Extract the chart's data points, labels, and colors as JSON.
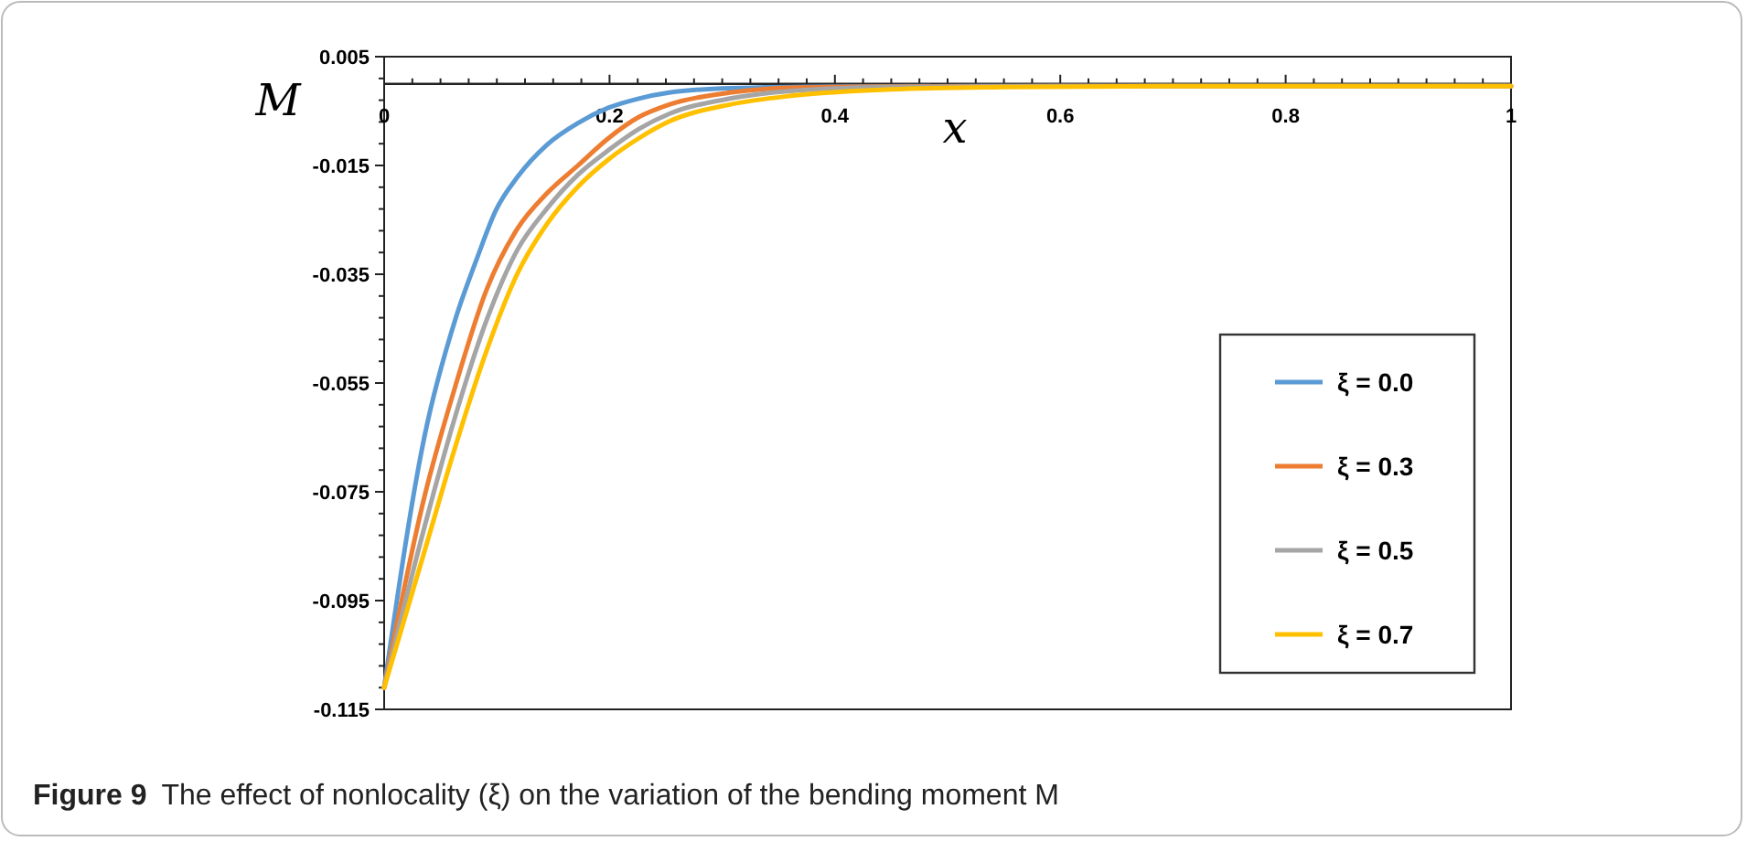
{
  "chart_data": {
    "type": "line",
    "xlabel": "x",
    "ylabel": "M",
    "xlim": [
      0,
      1
    ],
    "ylim": [
      -0.115,
      0.005
    ],
    "xticks": [
      0,
      {
        "value": 0.025,
        "label": null
      },
      {
        "value": 0.05,
        "label": null
      },
      {
        "value": 0.075,
        "label": null
      },
      {
        "value": 0.1,
        "label": null
      },
      {
        "value": 0.125,
        "label": null
      },
      {
        "value": 0.15,
        "label": null
      },
      {
        "value": 0.175,
        "label": null
      },
      0.2,
      {
        "value": 0.225,
        "label": null
      },
      {
        "value": 0.25,
        "label": null
      },
      {
        "value": 0.275,
        "label": null
      },
      {
        "value": 0.3,
        "label": null
      },
      {
        "value": 0.325,
        "label": null
      },
      {
        "value": 0.35,
        "label": null
      },
      {
        "value": 0.375,
        "label": null
      },
      0.4,
      {
        "value": 0.425,
        "label": null
      },
      {
        "value": 0.45,
        "label": null
      },
      {
        "value": 0.475,
        "label": null
      },
      {
        "value": 0.5,
        "label": null
      },
      {
        "value": 0.525,
        "label": null
      },
      {
        "value": 0.55,
        "label": null
      },
      {
        "value": 0.575,
        "label": null
      },
      0.6,
      {
        "value": 0.625,
        "label": null
      },
      {
        "value": 0.65,
        "label": null
      },
      {
        "value": 0.675,
        "label": null
      },
      {
        "value": 0.7,
        "label": null
      },
      {
        "value": 0.725,
        "label": null
      },
      {
        "value": 0.75,
        "label": null
      },
      {
        "value": 0.775,
        "label": null
      },
      0.8,
      {
        "value": 0.825,
        "label": null
      },
      {
        "value": 0.85,
        "label": null
      },
      {
        "value": 0.875,
        "label": null
      },
      {
        "value": 0.9,
        "label": null
      },
      {
        "value": 0.925,
        "label": null
      },
      {
        "value": 0.95,
        "label": null
      },
      {
        "value": 0.975,
        "label": null
      },
      1
    ],
    "yticks": [
      -0.115,
      -0.095,
      -0.075,
      -0.055,
      -0.035,
      -0.015,
      0.005
    ],
    "grid": false,
    "legend": "right",
    "marker": "none",
    "line_style": "solid",
    "annotations": [
      "Figure 9",
      "The effect of nonlocality (ξ) on the variation of the bending moment M"
    ],
    "series": [
      {
        "name": "ξ = 0.0",
        "color": "#5b9bd5",
        "x": [
          0,
          0.036,
          0.063,
          0.082,
          0.099,
          0.118,
          0.145,
          0.172,
          0.199,
          0.226,
          0.253,
          0.307,
          0.4,
          0.6,
          1
        ],
        "values": [
          -0.111,
          -0.0646,
          -0.0434,
          -0.0323,
          -0.0233,
          -0.0172,
          -0.0111,
          -0.0072,
          -0.0044,
          -0.0027,
          -0.0016,
          -0.0008,
          -0.0005,
          -0.0004,
          -0.0004
        ]
      },
      {
        "name": "ξ = 0.3",
        "color": "#ed7d31",
        "x": [
          0,
          0.036,
          0.063,
          0.091,
          0.118,
          0.145,
          0.172,
          0.199,
          0.226,
          0.253,
          0.307,
          0.361,
          0.45,
          0.6,
          1
        ],
        "values": [
          -0.111,
          -0.0757,
          -0.0557,
          -0.0378,
          -0.0267,
          -0.02,
          -0.015,
          -0.01,
          -0.0061,
          -0.0038,
          -0.0016,
          -0.0007,
          -0.0005,
          -0.0004,
          -0.0004
        ]
      },
      {
        "name": "ξ = 0.5",
        "color": "#a5a5a5",
        "x": [
          0,
          0.036,
          0.063,
          0.091,
          0.118,
          0.145,
          0.172,
          0.199,
          0.226,
          0.253,
          0.307,
          0.361,
          0.45,
          0.6,
          1
        ],
        "values": [
          -0.111,
          -0.0813,
          -0.0612,
          -0.0434,
          -0.0306,
          -0.0228,
          -0.0167,
          -0.0122,
          -0.0083,
          -0.0055,
          -0.0027,
          -0.0013,
          -0.0006,
          -0.0004,
          -0.0004
        ]
      },
      {
        "name": "ξ = 0.7",
        "color": "#ffc000",
        "x": [
          0,
          0.036,
          0.063,
          0.091,
          0.118,
          0.145,
          0.172,
          0.199,
          0.226,
          0.253,
          0.307,
          0.361,
          0.45,
          0.55,
          0.7,
          1
        ],
        "values": [
          -0.111,
          -0.0858,
          -0.0668,
          -0.049,
          -0.035,
          -0.0256,
          -0.0189,
          -0.0139,
          -0.01,
          -0.0069,
          -0.0038,
          -0.0022,
          -0.001,
          -0.0006,
          -0.0004,
          -0.0004
        ]
      }
    ]
  }
}
